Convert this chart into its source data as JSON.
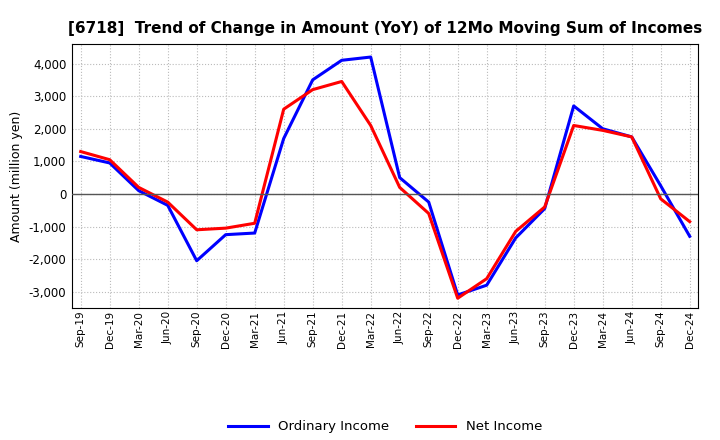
{
  "title": "[6718]  Trend of Change in Amount (YoY) of 12Mo Moving Sum of Incomes",
  "ylabel": "Amount (million yen)",
  "x_labels": [
    "Sep-19",
    "Dec-19",
    "Mar-20",
    "Jun-20",
    "Sep-20",
    "Dec-20",
    "Mar-21",
    "Jun-21",
    "Sep-21",
    "Dec-21",
    "Mar-22",
    "Jun-22",
    "Sep-22",
    "Dec-22",
    "Mar-23",
    "Jun-23",
    "Sep-23",
    "Dec-23",
    "Mar-24",
    "Jun-24",
    "Sep-24",
    "Dec-24"
  ],
  "ordinary_income": [
    1150,
    950,
    100,
    -350,
    -2050,
    -1250,
    -1200,
    1700,
    3500,
    4100,
    4200,
    500,
    -250,
    -3100,
    -2800,
    -1350,
    -450,
    2700,
    2000,
    1750,
    250,
    -1300
  ],
  "net_income": [
    1300,
    1050,
    200,
    -250,
    -1100,
    -1050,
    -900,
    2600,
    3200,
    3450,
    2100,
    200,
    -600,
    -3200,
    -2600,
    -1150,
    -400,
    2100,
    1950,
    1750,
    -150,
    -850
  ],
  "ordinary_color": "#0000FF",
  "net_color": "#FF0000",
  "ylim": [
    -3500,
    4600
  ],
  "yticks": [
    -3000,
    -2000,
    -1000,
    0,
    1000,
    2000,
    3000,
    4000
  ],
  "background_color": "#FFFFFF",
  "grid_color": "#BBBBBB",
  "legend_labels": [
    "Ordinary Income",
    "Net Income"
  ]
}
